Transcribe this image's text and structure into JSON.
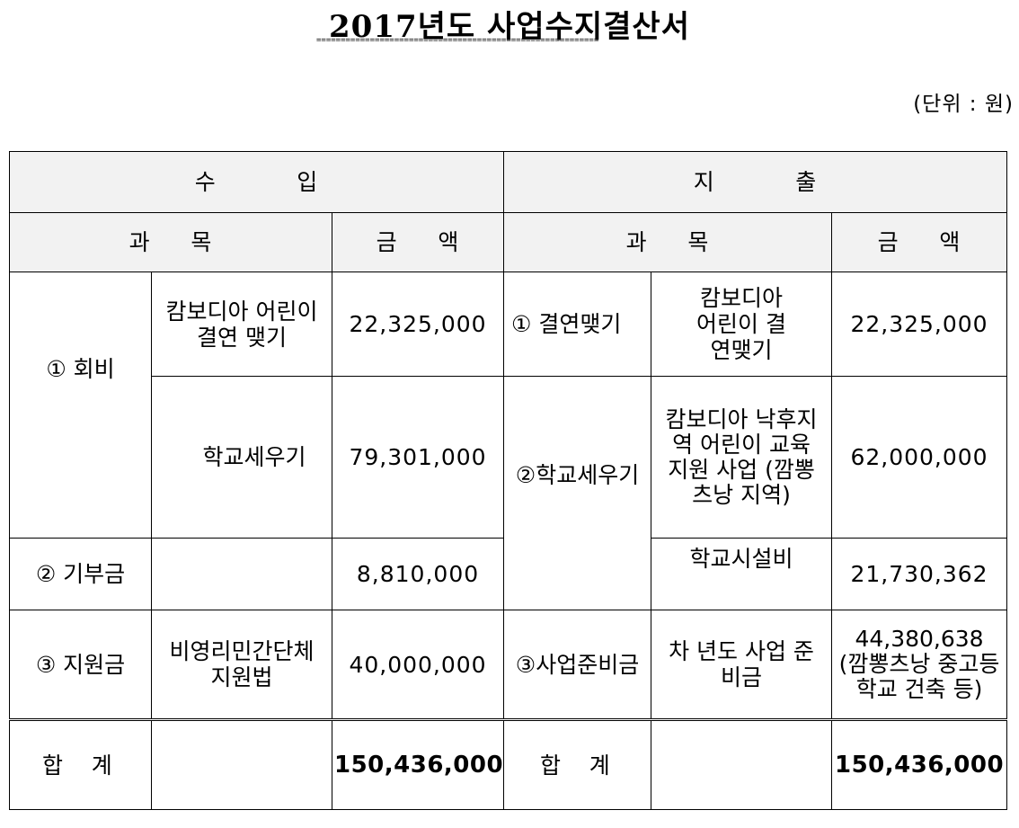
{
  "title": "2017년도 사업수지결산서",
  "title_underline": "==========================================================",
  "unit": "(단위 : 원)",
  "header": {
    "income": "수          입",
    "expense": "지          출",
    "subject": "과     목",
    "amount": "금     액",
    "subject2": "과     목",
    "amount2": "금     액"
  },
  "income": {
    "cat1": "① 회비",
    "cat1_item1": "캄보디아 어린이  결연 맺기",
    "cat1_item1_amount": "22,325,000",
    "cat1_item2": "학교세우기",
    "cat1_item2_amount": "79,301,000",
    "cat2": "② 기부금",
    "cat2_item": "",
    "cat2_amount": "8,810,000",
    "cat3": "③ 지원금",
    "cat3_item": "비영리민간단체지원법",
    "cat3_amount": "40,000,000"
  },
  "expense": {
    "cat1": "① 결연맺기",
    "cat1_item": "캄보디아 어린이 결연맺기",
    "cat1_amount": "22,325,000",
    "cat2": "②학교세우기",
    "cat2_item1": "캄보디아 낙후지역 어린이 교육 지원 사업 (깜뽕츠낭 지역)",
    "cat2_item1_amount": "62,000,000",
    "cat2_item2": "학교시설비",
    "cat2_item2_amount": "21,730,362",
    "cat3": "③사업준비금",
    "cat3_item": "차 년도 사업 준비금",
    "cat3_amount": "44,380,638 (깜뽕츠낭 중고등학교 건축 등)"
  },
  "total": {
    "income_label": "합    계",
    "income_amount": "150,436,000",
    "expense_label": "합    계",
    "expense_amount": "150,436,000"
  }
}
